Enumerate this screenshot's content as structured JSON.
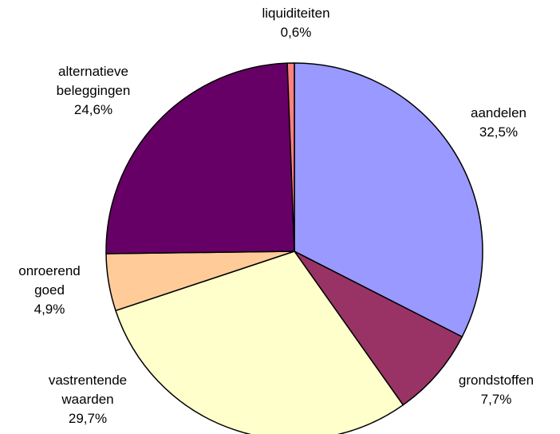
{
  "chart_data": {
    "type": "pie",
    "categories": [
      "aandelen",
      "grondstoffen",
      "vastrentende waarden",
      "onroerend goed",
      "alternatieve beleggingen",
      "liquiditeiten"
    ],
    "values": [
      32.5,
      7.7,
      29.7,
      4.9,
      24.6,
      0.6
    ],
    "value_labels": [
      "32,5%",
      "7,7%",
      "29,7%",
      "4,9%",
      "24,6%",
      "0,6%"
    ],
    "colors": [
      "#9999ff",
      "#993366",
      "#ffffcc",
      "#ffcc99",
      "#660066",
      "#ff8080"
    ]
  }
}
